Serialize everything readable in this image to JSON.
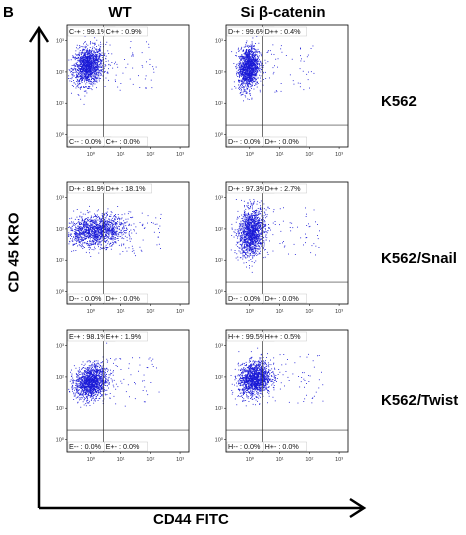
{
  "panel_letter": "B",
  "columns": [
    "WT",
    "Si β-catenin"
  ],
  "rows": [
    "K562",
    "K562/Snail",
    "K562/Twist"
  ],
  "y_axis_title": "CD 45 KRO",
  "x_axis_title": "CD44 FITC",
  "colors": {
    "dots": "#1a1ad6",
    "axis": "#000000",
    "quadrant_line": "#333333",
    "label_bg": "#ffffff"
  },
  "chart_data": [
    {
      "type": "scatter",
      "row": "K562",
      "column": "WT",
      "x_scale": "log",
      "y_scale": "log",
      "x_ticks": [
        "10⁰",
        "10¹",
        "10²",
        "10³"
      ],
      "y_ticks": [
        "10³",
        "10²",
        "10¹",
        "10⁰"
      ],
      "quadrants": {
        "upper_left": "C-+ : 99.1%",
        "upper_right": "C++ : 0.9%",
        "lower_left": "C-- : 0.0%",
        "lower_right": "C+- : 0.0%"
      },
      "population": {
        "center_x_log": -0.1,
        "center_y_log": 2.2,
        "spread_x": 0.25,
        "spread_y": 0.33
      }
    },
    {
      "type": "scatter",
      "row": "K562",
      "column": "Si β-catenin",
      "x_scale": "log",
      "y_scale": "log",
      "x_ticks": [
        "10⁰",
        "10¹",
        "10²",
        "10³"
      ],
      "y_ticks": [
        "10³",
        "10²",
        "10¹",
        "10⁰"
      ],
      "quadrants": {
        "upper_left": "D-+ : 99.6%",
        "upper_right": "D++ : 0.4%",
        "lower_left": "D-- : 0.0%",
        "lower_right": "D+- : 0.0%"
      },
      "population": {
        "center_x_log": -0.05,
        "center_y_log": 2.15,
        "spread_x": 0.17,
        "spread_y": 0.37
      }
    },
    {
      "type": "scatter",
      "row": "K562/Snail",
      "column": "WT",
      "x_scale": "log",
      "y_scale": "log",
      "x_ticks": [
        "10⁰",
        "10¹",
        "10²",
        "10³"
      ],
      "y_ticks": [
        "10³",
        "10²",
        "10¹",
        "10⁰"
      ],
      "quadrants": {
        "upper_left": "D-+ : 81.9%",
        "upper_right": "D++ : 18.1%",
        "lower_left": "D-- : 0.0%",
        "lower_right": "D+- : 0.0%"
      },
      "population": {
        "center_x_log": 0.15,
        "center_y_log": 1.95,
        "spread_x": 0.5,
        "spread_y": 0.27
      }
    },
    {
      "type": "scatter",
      "row": "K562/Snail",
      "column": "Si β-catenin",
      "x_scale": "log",
      "y_scale": "log",
      "x_ticks": [
        "10⁰",
        "10¹",
        "10²",
        "10³"
      ],
      "y_ticks": [
        "10³",
        "10²",
        "10¹",
        "10⁰"
      ],
      "quadrants": {
        "upper_left": "D-+ : 97.3%",
        "upper_right": "D++ : 2.7%",
        "lower_left": "D-- : 0.0%",
        "lower_right": "D+- : 0.0%"
      },
      "population": {
        "center_x_log": 0.05,
        "center_y_log": 1.9,
        "spread_x": 0.22,
        "spread_y": 0.42
      }
    },
    {
      "type": "scatter",
      "row": "K562/Twist",
      "column": "WT",
      "x_scale": "log",
      "y_scale": "log",
      "x_ticks": [
        "10⁰",
        "10¹",
        "10²",
        "10³"
      ],
      "y_ticks": [
        "10³",
        "10²",
        "10¹",
        "10⁰"
      ],
      "quadrants": {
        "upper_left": "E-+ : 98.1%",
        "upper_right": "E++ : 1.9%",
        "lower_left": "E-- : 0.0%",
        "lower_right": "E+- : 0.0%"
      },
      "population": {
        "center_x_log": 0.0,
        "center_y_log": 1.85,
        "spread_x": 0.27,
        "spread_y": 0.3
      }
    },
    {
      "type": "scatter",
      "row": "K562/Twist",
      "column": "Si β-catenin",
      "x_scale": "log",
      "y_scale": "log",
      "x_ticks": [
        "10⁰",
        "10¹",
        "10²",
        "10³"
      ],
      "y_ticks": [
        "10³",
        "10²",
        "10¹",
        "10⁰"
      ],
      "quadrants": {
        "upper_left": "H-+ : 99.5%",
        "upper_right": "H++ : 0.5%",
        "lower_left": "H-- : 0.0%",
        "lower_right": "H+- : 0.0%"
      },
      "population": {
        "center_x_log": 0.15,
        "center_y_log": 1.95,
        "spread_x": 0.27,
        "spread_y": 0.3
      }
    }
  ]
}
